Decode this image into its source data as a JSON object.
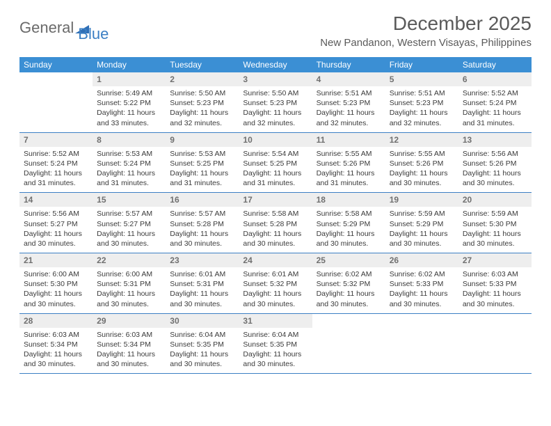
{
  "logo": {
    "text1": "General",
    "text2": "Blue"
  },
  "title": "December 2025",
  "location": "New Pandanon, Western Visayas, Philippines",
  "colors": {
    "header_bg": "#3b8fd4",
    "header_text": "#ffffff",
    "daynum_bg": "#eeeeee",
    "daynum_text": "#707070",
    "body_text": "#3a3a3a",
    "rule": "#3b7fc4",
    "logo_gray": "#6a6a6a",
    "logo_blue": "#3b7fc4"
  },
  "table": {
    "type": "table",
    "columns": [
      "Sunday",
      "Monday",
      "Tuesday",
      "Wednesday",
      "Thursday",
      "Friday",
      "Saturday"
    ],
    "weeks": [
      [
        null,
        {
          "n": "1",
          "sr": "5:49 AM",
          "ss": "5:22 PM",
          "dl": "11 hours and 33 minutes."
        },
        {
          "n": "2",
          "sr": "5:50 AM",
          "ss": "5:23 PM",
          "dl": "11 hours and 32 minutes."
        },
        {
          "n": "3",
          "sr": "5:50 AM",
          "ss": "5:23 PM",
          "dl": "11 hours and 32 minutes."
        },
        {
          "n": "4",
          "sr": "5:51 AM",
          "ss": "5:23 PM",
          "dl": "11 hours and 32 minutes."
        },
        {
          "n": "5",
          "sr": "5:51 AM",
          "ss": "5:23 PM",
          "dl": "11 hours and 32 minutes."
        },
        {
          "n": "6",
          "sr": "5:52 AM",
          "ss": "5:24 PM",
          "dl": "11 hours and 31 minutes."
        }
      ],
      [
        {
          "n": "7",
          "sr": "5:52 AM",
          "ss": "5:24 PM",
          "dl": "11 hours and 31 minutes."
        },
        {
          "n": "8",
          "sr": "5:53 AM",
          "ss": "5:24 PM",
          "dl": "11 hours and 31 minutes."
        },
        {
          "n": "9",
          "sr": "5:53 AM",
          "ss": "5:25 PM",
          "dl": "11 hours and 31 minutes."
        },
        {
          "n": "10",
          "sr": "5:54 AM",
          "ss": "5:25 PM",
          "dl": "11 hours and 31 minutes."
        },
        {
          "n": "11",
          "sr": "5:55 AM",
          "ss": "5:26 PM",
          "dl": "11 hours and 31 minutes."
        },
        {
          "n": "12",
          "sr": "5:55 AM",
          "ss": "5:26 PM",
          "dl": "11 hours and 30 minutes."
        },
        {
          "n": "13",
          "sr": "5:56 AM",
          "ss": "5:26 PM",
          "dl": "11 hours and 30 minutes."
        }
      ],
      [
        {
          "n": "14",
          "sr": "5:56 AM",
          "ss": "5:27 PM",
          "dl": "11 hours and 30 minutes."
        },
        {
          "n": "15",
          "sr": "5:57 AM",
          "ss": "5:27 PM",
          "dl": "11 hours and 30 minutes."
        },
        {
          "n": "16",
          "sr": "5:57 AM",
          "ss": "5:28 PM",
          "dl": "11 hours and 30 minutes."
        },
        {
          "n": "17",
          "sr": "5:58 AM",
          "ss": "5:28 PM",
          "dl": "11 hours and 30 minutes."
        },
        {
          "n": "18",
          "sr": "5:58 AM",
          "ss": "5:29 PM",
          "dl": "11 hours and 30 minutes."
        },
        {
          "n": "19",
          "sr": "5:59 AM",
          "ss": "5:29 PM",
          "dl": "11 hours and 30 minutes."
        },
        {
          "n": "20",
          "sr": "5:59 AM",
          "ss": "5:30 PM",
          "dl": "11 hours and 30 minutes."
        }
      ],
      [
        {
          "n": "21",
          "sr": "6:00 AM",
          "ss": "5:30 PM",
          "dl": "11 hours and 30 minutes."
        },
        {
          "n": "22",
          "sr": "6:00 AM",
          "ss": "5:31 PM",
          "dl": "11 hours and 30 minutes."
        },
        {
          "n": "23",
          "sr": "6:01 AM",
          "ss": "5:31 PM",
          "dl": "11 hours and 30 minutes."
        },
        {
          "n": "24",
          "sr": "6:01 AM",
          "ss": "5:32 PM",
          "dl": "11 hours and 30 minutes."
        },
        {
          "n": "25",
          "sr": "6:02 AM",
          "ss": "5:32 PM",
          "dl": "11 hours and 30 minutes."
        },
        {
          "n": "26",
          "sr": "6:02 AM",
          "ss": "5:33 PM",
          "dl": "11 hours and 30 minutes."
        },
        {
          "n": "27",
          "sr": "6:03 AM",
          "ss": "5:33 PM",
          "dl": "11 hours and 30 minutes."
        }
      ],
      [
        {
          "n": "28",
          "sr": "6:03 AM",
          "ss": "5:34 PM",
          "dl": "11 hours and 30 minutes."
        },
        {
          "n": "29",
          "sr": "6:03 AM",
          "ss": "5:34 PM",
          "dl": "11 hours and 30 minutes."
        },
        {
          "n": "30",
          "sr": "6:04 AM",
          "ss": "5:35 PM",
          "dl": "11 hours and 30 minutes."
        },
        {
          "n": "31",
          "sr": "6:04 AM",
          "ss": "5:35 PM",
          "dl": "11 hours and 30 minutes."
        },
        null,
        null,
        null
      ]
    ],
    "labels": {
      "sunrise": "Sunrise:",
      "sunset": "Sunset:",
      "daylight": "Daylight:"
    }
  }
}
